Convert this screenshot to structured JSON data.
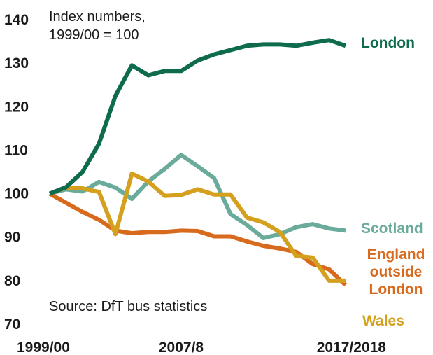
{
  "chart_data": {
    "type": "line",
    "unit_note_line1": "Index numbers,",
    "unit_note_line2": "1999/00 = 100",
    "source": "Source: DfT bus statistics",
    "ylim": [
      70,
      140
    ],
    "yticks": [
      "70",
      "80",
      "90",
      "100",
      "110",
      "120",
      "130",
      "140"
    ],
    "xlim": [
      0,
      18
    ],
    "x_tick_labels": [
      {
        "x": 0,
        "label": "1999/00"
      },
      {
        "x": 8,
        "label": "2007/8"
      },
      {
        "x": 18,
        "label": "2017/2018"
      }
    ],
    "grid": false,
    "series": [
      {
        "name": "London",
        "color": "#0e6b4e",
        "label_lines": [
          "London"
        ],
        "values": [
          100,
          101.5,
          105,
          111.5,
          122.5,
          129.5,
          127.2,
          128.2,
          128.2,
          130.6,
          132,
          133,
          134,
          134.3,
          134.3,
          134,
          134.7,
          135.3,
          134
        ]
      },
      {
        "name": "Scotland",
        "color": "#6aab9c",
        "label_lines": [
          "Scotland"
        ],
        "values": [
          100,
          101,
          100.5,
          102.7,
          101.4,
          98.8,
          102.8,
          105.7,
          108.9,
          106.3,
          103.6,
          95.3,
          92.8,
          89.8,
          90.7,
          92.3,
          93,
          92,
          91.5
        ]
      },
      {
        "name": "England outside London",
        "color": "#d86a1e",
        "label_lines": [
          "England",
          "outside",
          "London"
        ],
        "values": [
          100,
          97.9,
          95.8,
          94,
          91.5,
          90.9,
          91.2,
          91.2,
          91.5,
          91.4,
          90.2,
          90.2,
          89,
          88,
          87.4,
          86.6,
          83.8,
          82.6,
          79
        ]
      },
      {
        "name": "Wales",
        "color": "#d4a01e",
        "label_lines": [
          "Wales"
        ],
        "values": [
          100,
          101.4,
          101.2,
          100.4,
          90.7,
          104.6,
          102.8,
          99.5,
          99.7,
          101,
          99.8,
          99.8,
          94.5,
          93.4,
          91.2,
          85.7,
          85.3,
          80,
          80
        ]
      }
    ]
  }
}
